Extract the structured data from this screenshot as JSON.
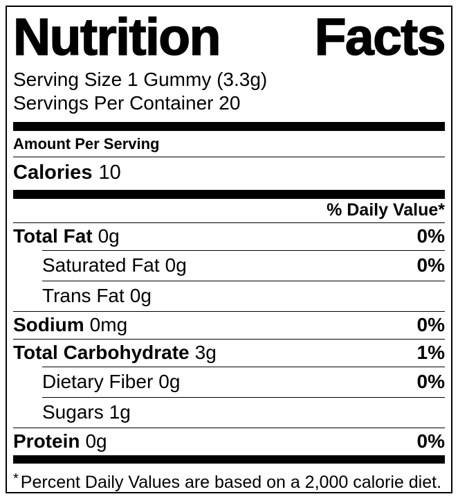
{
  "label": {
    "title": "Nutrition Facts",
    "serving_size": "Serving Size 1 Gummy (3.3g)",
    "servings_per_container": "Servings Per Container 20",
    "amount_per_serving": "Amount Per Serving",
    "calories": {
      "name": "Calories",
      "amount": "10"
    },
    "daily_value_header": "% Daily Value*",
    "rows": [
      {
        "name": "Total Fat",
        "amount": "0g",
        "dv": "0%"
      },
      {
        "name": "Saturated Fat",
        "amount": "0g",
        "dv": "0%"
      },
      {
        "name": "Trans Fat",
        "amount": "0g",
        "dv": ""
      },
      {
        "name": "Sodium",
        "amount": "0mg",
        "dv": "0%"
      },
      {
        "name": "Total Carbohydrate",
        "amount": "3g",
        "dv": "1%"
      },
      {
        "name": "Dietary Fiber",
        "amount": "0g",
        "dv": "0%"
      },
      {
        "name": "Sugars",
        "amount": "1g",
        "dv": ""
      },
      {
        "name": "Protein",
        "amount": "0g",
        "dv": "0%"
      }
    ],
    "footnote_mark": "*",
    "footnote_text": "Percent Daily Values are based on a 2,000 calorie diet.",
    "colors": {
      "ink": "#000000",
      "paper": "#ffffff"
    }
  }
}
